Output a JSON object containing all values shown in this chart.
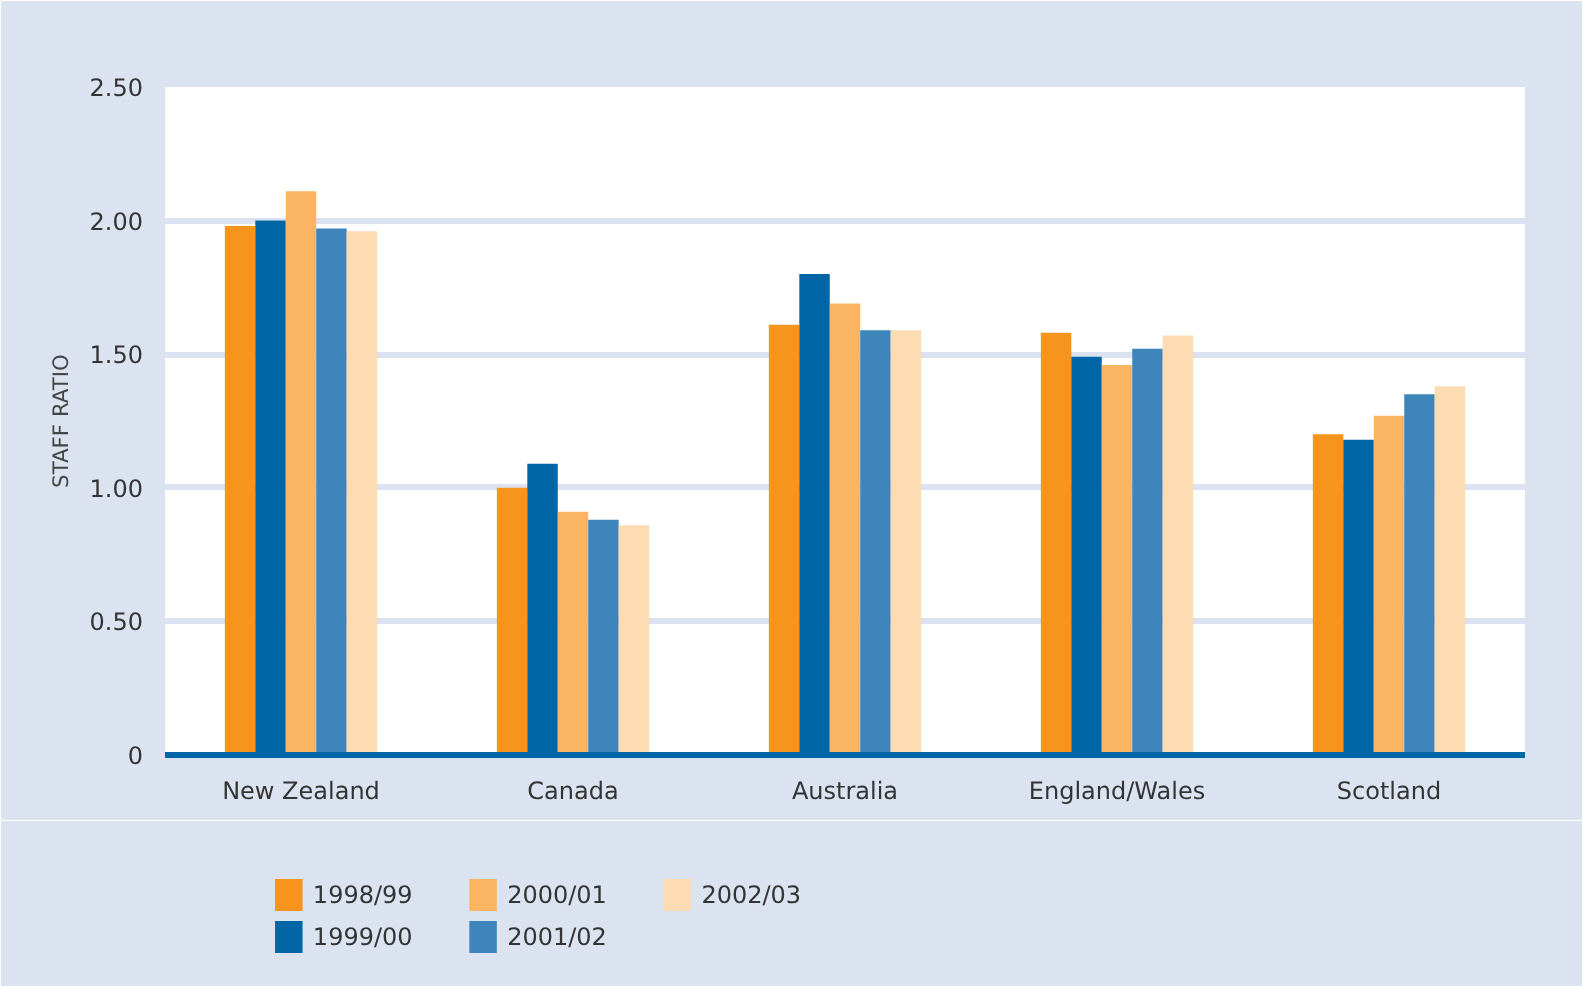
{
  "chart_data": {
    "type": "bar",
    "ylabel": "STAFF RATIO",
    "categories": [
      "New Zealand",
      "Canada",
      "Australia",
      "England/Wales",
      "Scotland"
    ],
    "ylim": [
      0,
      2.5
    ],
    "yticks": [
      {
        "value": 0,
        "label": "0"
      },
      {
        "value": 0.5,
        "label": "0.50"
      },
      {
        "value": 1,
        "label": "1.00"
      },
      {
        "value": 1.5,
        "label": "1.50"
      },
      {
        "value": 2,
        "label": "2.00"
      },
      {
        "value": 2.5,
        "label": "2.50"
      }
    ],
    "grid": "y",
    "legend": "bottom",
    "series": [
      {
        "name": "1998/99",
        "color": "#f7941d",
        "values": [
          1.98,
          1.0,
          1.61,
          1.58,
          1.2
        ]
      },
      {
        "name": "1999/00",
        "color": "#0066a6",
        "values": [
          2.0,
          1.09,
          1.8,
          1.49,
          1.18
        ]
      },
      {
        "name": "2000/01",
        "color": "#fbb462",
        "values": [
          2.11,
          0.91,
          1.69,
          1.46,
          1.27
        ]
      },
      {
        "name": "2001/02",
        "color": "#3d85bb",
        "values": [
          1.97,
          0.88,
          1.59,
          1.52,
          1.35
        ]
      },
      {
        "name": "2002/03",
        "color": "#fddcb3",
        "values": [
          1.96,
          0.86,
          1.59,
          1.57,
          1.38
        ]
      }
    ]
  }
}
